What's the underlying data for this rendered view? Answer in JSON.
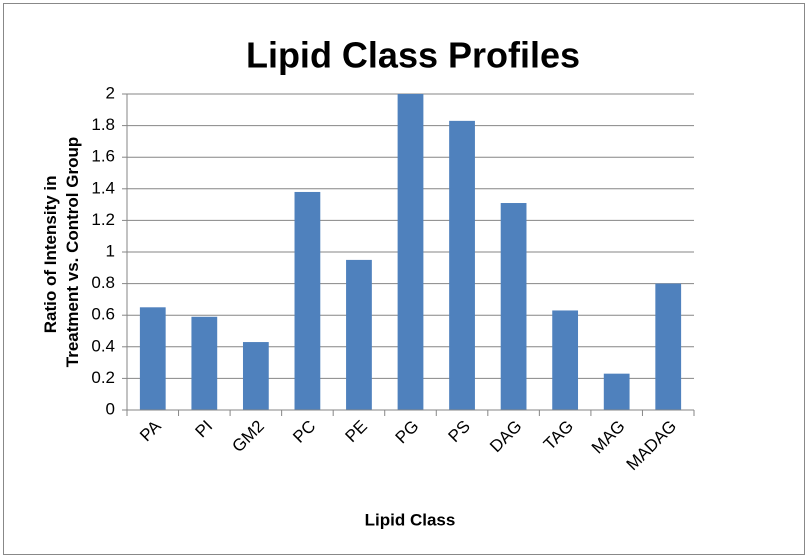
{
  "chart_data": {
    "type": "bar",
    "title": "Lipid Class Profiles",
    "x_label": "Lipid Class",
    "y_label": "Ratio of Intensity in Treatment vs. Control Group",
    "categories": [
      "PA",
      "PI",
      "GM2",
      "PC",
      "PE",
      "PG",
      "PS",
      "DAG",
      "TAG",
      "MAG",
      "MADAG"
    ],
    "values": [
      0.65,
      0.59,
      0.43,
      1.38,
      0.95,
      2.0,
      1.83,
      1.31,
      0.63,
      0.23,
      0.8
    ],
    "color": "#4f81bd",
    "ylim": [
      0,
      2
    ],
    "yticks": [
      0,
      0.2,
      0.4,
      0.6,
      0.8,
      1,
      1.2,
      1.4,
      1.6,
      1.8,
      2
    ],
    "grid": true
  }
}
